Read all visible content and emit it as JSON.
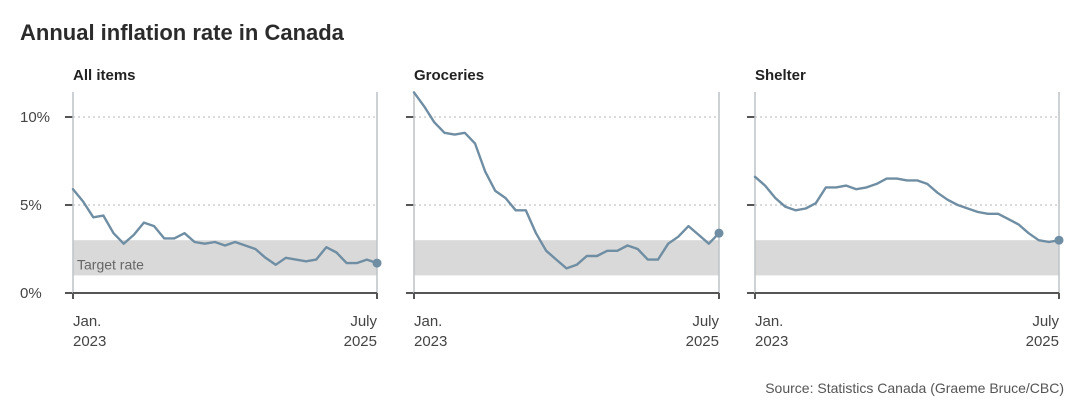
{
  "title": "Annual inflation rate in Canada",
  "source": "Source: Statistics Canada (Graeme Bruce/CBC)",
  "colors": {
    "line": "#6f8ea3",
    "band": "#d9d9d9",
    "axis": "#555555",
    "grid": "#b5b5b5"
  },
  "chart_data": {
    "type": "line",
    "ylim": [
      0,
      11
    ],
    "yticks": [
      {
        "value": 0,
        "label": "0%"
      },
      {
        "value": 5,
        "label": "5%"
      },
      {
        "value": 10,
        "label": "10%"
      }
    ],
    "gridlines": [
      5,
      10
    ],
    "target_band": {
      "low": 1,
      "high": 3,
      "label": "Target rate"
    },
    "x_start": {
      "line1": "Jan.",
      "line2": "2023"
    },
    "x_end": {
      "line1": "July",
      "line2": "2025"
    },
    "series": [
      {
        "name": "All items",
        "values": [
          5.9,
          5.2,
          4.3,
          4.4,
          3.4,
          2.8,
          3.3,
          4.0,
          3.8,
          3.1,
          3.1,
          3.4,
          2.9,
          2.8,
          2.9,
          2.7,
          2.9,
          2.7,
          2.5,
          2.0,
          1.6,
          2.0,
          1.9,
          1.8,
          1.9,
          2.6,
          2.3,
          1.7,
          1.7,
          1.9,
          1.7
        ]
      },
      {
        "name": "Groceries",
        "values": [
          11.4,
          10.6,
          9.7,
          9.1,
          9.0,
          9.1,
          8.5,
          6.9,
          5.8,
          5.4,
          4.7,
          4.7,
          3.4,
          2.4,
          1.9,
          1.4,
          1.6,
          2.1,
          2.1,
          2.4,
          2.4,
          2.7,
          2.5,
          1.9,
          1.9,
          2.8,
          3.2,
          3.8,
          3.3,
          2.8,
          3.4
        ]
      },
      {
        "name": "Shelter",
        "values": [
          6.6,
          6.1,
          5.4,
          4.9,
          4.7,
          4.8,
          5.1,
          6.0,
          6.0,
          6.1,
          5.9,
          6.0,
          6.2,
          6.5,
          6.5,
          6.4,
          6.4,
          6.2,
          5.7,
          5.3,
          5.0,
          4.8,
          4.6,
          4.5,
          4.5,
          4.2,
          3.9,
          3.4,
          3.0,
          2.9,
          3.0
        ]
      }
    ]
  }
}
